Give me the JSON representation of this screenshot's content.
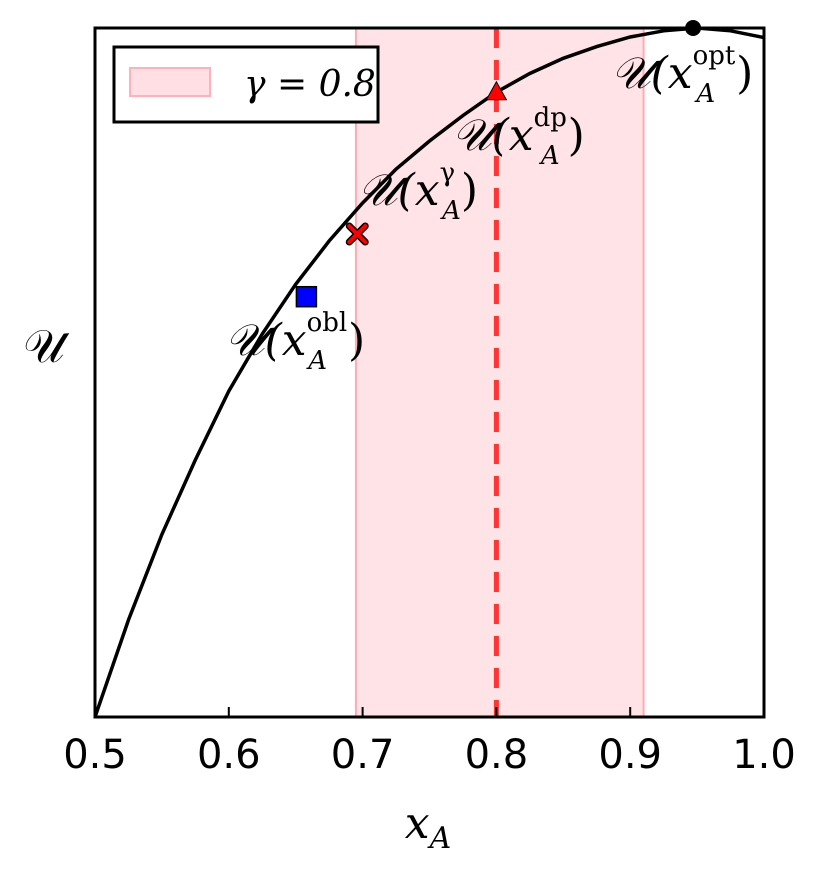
{
  "chart_data": {
    "type": "line",
    "xlabel": "x_A",
    "ylabel": "𝒰",
    "xlim": [
      0.5,
      1.0
    ],
    "ylim": [
      0.0,
      1.0
    ],
    "y_ticks_shown": false,
    "x_ticks": [
      0.5,
      0.6,
      0.7,
      0.8,
      0.9,
      1.0
    ],
    "x_tick_labels": [
      "0.5",
      "0.6",
      "0.7",
      "0.8",
      "0.9",
      "1.0"
    ],
    "grid": false,
    "legend_position": "top-left",
    "series": [
      {
        "name": "",
        "color": "#000000",
        "x": [
          0.5,
          0.525,
          0.55,
          0.575,
          0.6,
          0.625,
          0.65,
          0.675,
          0.7,
          0.725,
          0.75,
          0.775,
          0.8,
          0.825,
          0.85,
          0.875,
          0.9,
          0.925,
          0.95,
          0.975,
          1.0
        ],
        "y": [
          0.0,
          0.141,
          0.265,
          0.373,
          0.473,
          0.556,
          0.628,
          0.691,
          0.746,
          0.795,
          0.836,
          0.873,
          0.907,
          0.934,
          0.956,
          0.973,
          0.987,
          0.996,
          1.0,
          0.996,
          0.986
        ]
      }
    ],
    "shaded_region": {
      "label": "γ = 0.8",
      "x_range": [
        0.695,
        0.91
      ],
      "color": "#ffc0c8"
    },
    "vertical_line": {
      "x": 0.8,
      "color": "#ff2020",
      "style": "dashed"
    },
    "points": [
      {
        "name": "opt",
        "x": 0.947,
        "y": 1.0,
        "marker": "circle",
        "color": "#000000",
        "label_base": "𝒰(x",
        "label_sub": "A",
        "label_sup": "opt",
        "label_close": ")"
      },
      {
        "name": "dp",
        "x": 0.8,
        "y": 0.906,
        "marker": "triangle",
        "color": "#ff0000",
        "label_base": "𝒰(x",
        "label_sub": "A",
        "label_sup": "dp",
        "label_close": ")"
      },
      {
        "name": "gamma",
        "x": 0.696,
        "y": 0.701,
        "marker": "x",
        "color": "#ff0000",
        "label_base": "𝒰(x",
        "label_sub": "A",
        "label_sup": "γ",
        "label_close": ")"
      },
      {
        "name": "obl",
        "x": 0.658,
        "y": 0.61,
        "marker": "square",
        "color": "#0000ff",
        "label_base": "𝒰(x",
        "label_sub": "A",
        "label_sup": "obl",
        "label_close": ")"
      }
    ],
    "legend": [
      {
        "label": "γ = 0.8",
        "color": "#ffc0c8"
      }
    ]
  }
}
